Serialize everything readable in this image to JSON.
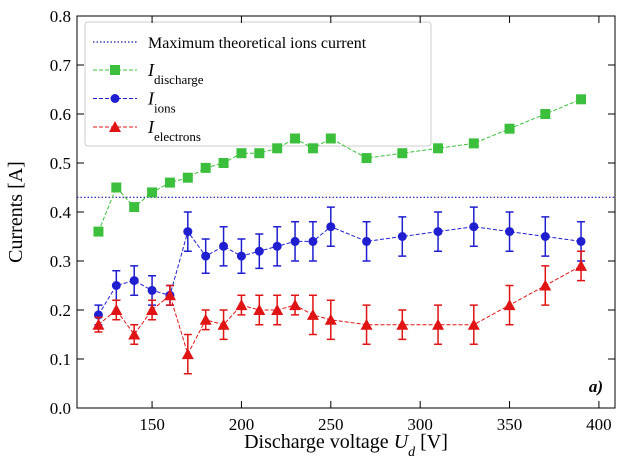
{
  "chart_data": {
    "type": "line",
    "xlabel": [
      "Discharge voltage ",
      "U",
      "d",
      " [V]"
    ],
    "ylabel": "Currents [A]",
    "annotation": "a)",
    "x": [
      120,
      130,
      140,
      150,
      160,
      170,
      180,
      190,
      200,
      210,
      220,
      230,
      240,
      250,
      270,
      290,
      310,
      330,
      350,
      370,
      390
    ],
    "xlim": [
      108,
      409
    ],
    "xticks": [
      150,
      200,
      250,
      300,
      350,
      400
    ],
    "ylim": [
      0,
      0.8
    ],
    "yticks": [
      {
        "value": 0,
        "label": "0.0"
      },
      0.1,
      0.2,
      0.3,
      0.4,
      0.5,
      0.6,
      0.7,
      0.8
    ],
    "hline": {
      "value": 0.43,
      "name": "Maximum theoretical ions current",
      "color": "#1a1aa6"
    },
    "series": [
      {
        "name": {
          "symbol": "I",
          "subscript": "discharge"
        },
        "color": "#3cbf3c",
        "marker": "square",
        "values": [
          0.36,
          0.45,
          0.41,
          0.44,
          0.46,
          0.47,
          0.49,
          0.5,
          0.52,
          0.52,
          0.53,
          0.55,
          0.53,
          0.55,
          0.51,
          0.52,
          0.53,
          0.54,
          0.57,
          0.6,
          0.63
        ]
      },
      {
        "name": {
          "symbol": "I",
          "subscript": "ions"
        },
        "color": "#1f1fd0",
        "marker": "circle",
        "values": [
          0.19,
          0.25,
          0.26,
          0.24,
          0.23,
          0.36,
          0.31,
          0.33,
          0.31,
          0.32,
          0.33,
          0.34,
          0.34,
          0.37,
          0.34,
          0.35,
          0.36,
          0.37,
          0.36,
          0.35,
          0.34
        ],
        "errors": [
          0.02,
          0.03,
          0.03,
          0.03,
          0.02,
          0.04,
          0.035,
          0.04,
          0.035,
          0.035,
          0.04,
          0.04,
          0.04,
          0.04,
          0.04,
          0.04,
          0.04,
          0.04,
          0.04,
          0.04,
          0.04
        ]
      },
      {
        "name": {
          "symbol": "I",
          "subscript": "electrons"
        },
        "color": "#e01414",
        "marker": "triangle",
        "values": [
          0.17,
          0.2,
          0.15,
          0.2,
          0.23,
          0.11,
          0.18,
          0.17,
          0.21,
          0.2,
          0.2,
          0.21,
          0.19,
          0.18,
          0.17,
          0.17,
          0.17,
          0.17,
          0.21,
          0.25,
          0.29
        ],
        "errors": [
          0.015,
          0.02,
          0.02,
          0.02,
          0.02,
          0.04,
          0.02,
          0.03,
          0.02,
          0.03,
          0.03,
          0.02,
          0.04,
          0.04,
          0.04,
          0.03,
          0.04,
          0.04,
          0.04,
          0.04,
          0.03
        ]
      }
    ]
  }
}
